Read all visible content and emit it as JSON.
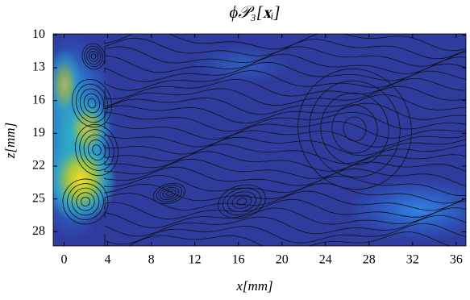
{
  "chart_data": {
    "type": "streamplot",
    "title": "ϕ𝒫₃[𝐱ᵢ]",
    "x_label": "x[mm]",
    "y_label": "z[mm]",
    "xlim": [
      -1,
      36.9
    ],
    "ylim": [
      9.9,
      29.3
    ],
    "y_inverted": true,
    "xticks": [
      0,
      4,
      8,
      12,
      16,
      20,
      24,
      28,
      32,
      36
    ],
    "yticks": [
      10,
      13,
      16,
      19,
      22,
      25,
      28
    ]
  }
}
